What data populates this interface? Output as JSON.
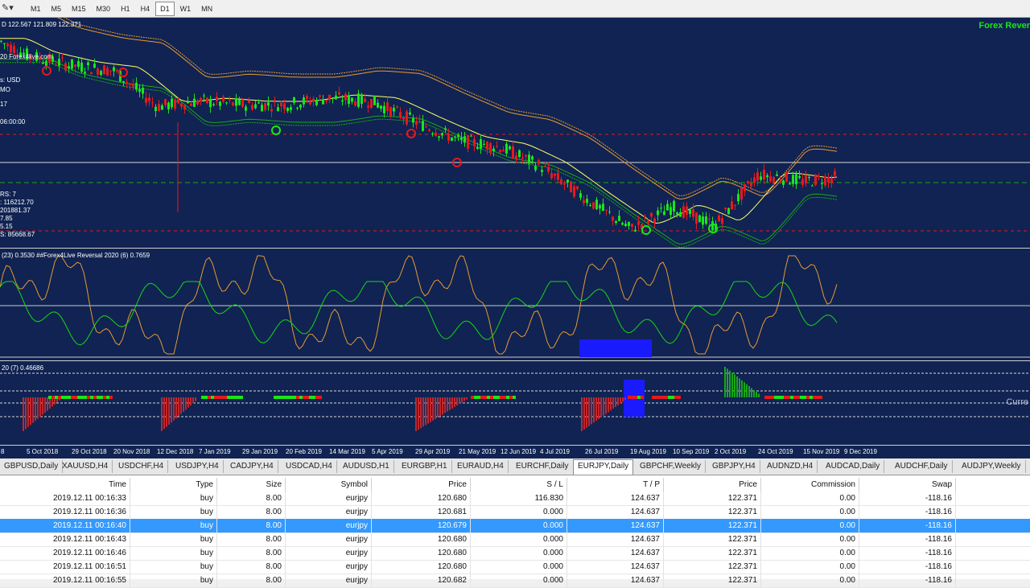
{
  "toolbar": {
    "timeframes": [
      "M1",
      "M5",
      "M15",
      "M30",
      "H1",
      "H4",
      "D1",
      "W1",
      "MN"
    ],
    "active": "D1"
  },
  "main_pane": {
    "price_header": "D 122.567 121.809 122.371",
    "brand": "Forex Rever",
    "info_lines": [
      "20 Forex4live.com",
      "s:   USD",
      "MO",
      "17",
      "06:00:00"
    ],
    "stats_lines": [
      "RS:   7",
      ":   116212.70",
      "201881.37",
      "7.85",
      "5.15",
      "S:   85668.67"
    ]
  },
  "osc_pane": {
    "label": "(23) 0.3530  ##Forex4Live Reversal 2020 (6) 0.7659"
  },
  "hist_pane": {
    "label": "20 (7) 0.46686",
    "current_label": "Curre"
  },
  "x_axis": [
    "8",
    "5 Oct 2018",
    "29 Oct 2018",
    "20 Nov 2018",
    "12 Dec 2018",
    "7 Jan 2019",
    "29 Jan 2019",
    "20 Feb 2019",
    "14 Mar 2019",
    "5 Apr 2019",
    "29 Apr 2019",
    "21 May 2019",
    "12 Jun 2019",
    "4 Jul 2019",
    "26 Jul 2019",
    "19 Aug 2019",
    "10 Sep 2019",
    "2 Oct 2019",
    "24 Oct 2019",
    "15 Nov 2019",
    "9 Dec 2019"
  ],
  "symbol_tabs": [
    "GBPUSD,Daily",
    "XAUUSD,H4",
    "USDCHF,H4",
    "USDJPY,H4",
    "CADJPY,H4",
    "USDCAD,H4",
    "AUDUSD,H1",
    "EURGBP,H1",
    "EURAUD,H4",
    "EURCHF,Daily",
    "EURJPY,Daily",
    "GBPCHF,Weekly",
    "GBPJPY,H4",
    "AUDNZD,H4",
    "AUDCAD,Daily",
    "AUDCHF,Daily",
    "AUDJPY,Weekly"
  ],
  "active_tab": "EURJPY,Daily",
  "table": {
    "headers": [
      "Time",
      "Type",
      "Size",
      "Symbol",
      "Price",
      "S / L",
      "T / P",
      "Price",
      "Commission",
      "Swap"
    ],
    "rows": [
      [
        "2019.12.11 00:16:33",
        "buy",
        "8.00",
        "eurjpy",
        "120.680",
        "116.830",
        "124.637",
        "122.371",
        "0.00",
        "-118.16"
      ],
      [
        "2019.12.11 00:16:36",
        "buy",
        "8.00",
        "eurjpy",
        "120.681",
        "0.000",
        "124.637",
        "122.371",
        "0.00",
        "-118.16"
      ],
      [
        "2019.12.11 00:16:40",
        "buy",
        "8.00",
        "eurjpy",
        "120.679",
        "0.000",
        "124.637",
        "122.371",
        "0.00",
        "-118.16"
      ],
      [
        "2019.12.11 00:16:43",
        "buy",
        "8.00",
        "eurjpy",
        "120.680",
        "0.000",
        "124.637",
        "122.371",
        "0.00",
        "-118.16"
      ],
      [
        "2019.12.11 00:16:46",
        "buy",
        "8.00",
        "eurjpy",
        "120.680",
        "0.000",
        "124.637",
        "122.371",
        "0.00",
        "-118.16"
      ],
      [
        "2019.12.11 00:16:51",
        "buy",
        "8.00",
        "eurjpy",
        "120.680",
        "0.000",
        "124.637",
        "122.371",
        "0.00",
        "-118.16"
      ],
      [
        "2019.12.11 00:16:55",
        "buy",
        "8.00",
        "eurjpy",
        "120.682",
        "0.000",
        "124.637",
        "122.371",
        "0.00",
        "-118.16"
      ]
    ],
    "selected_row": 2
  },
  "colors": {
    "chart_bg": "#102352",
    "bull": "#19e619",
    "bear": "#e6191e",
    "ma_fast": "#ffff66",
    "ma_slow": "#e69a33",
    "selection": "#3399ff"
  },
  "chart_data": {
    "type": "line",
    "title": "",
    "x": [
      "8",
      "5 Oct 2018",
      "29 Oct 2018",
      "20 Nov 2018",
      "12 Dec 2018",
      "7 Jan 2019",
      "29 Jan 2019",
      "20 Feb 2019",
      "14 Mar 2019",
      "5 Apr 2019",
      "29 Apr 2019",
      "21 May 2019",
      "12 Jun 2019",
      "4 Jul 2019",
      "26 Jul 2019",
      "19 Aug 2019",
      "10 Sep 2019",
      "2 Oct 2019",
      "24 Oct 2019",
      "15 Nov 2019",
      "9 Dec 2019"
    ],
    "series": [
      {
        "values": [
          129.6,
          128.8,
          128.2,
          127.9,
          125.8,
          126.1,
          125.9,
          125.9,
          126.3,
          126.1,
          124.9,
          123.8,
          123.4,
          122.3,
          120.4,
          118.6,
          119.9,
          118.8,
          121.8,
          121.4,
          121.7
        ]
      }
    ]
  }
}
